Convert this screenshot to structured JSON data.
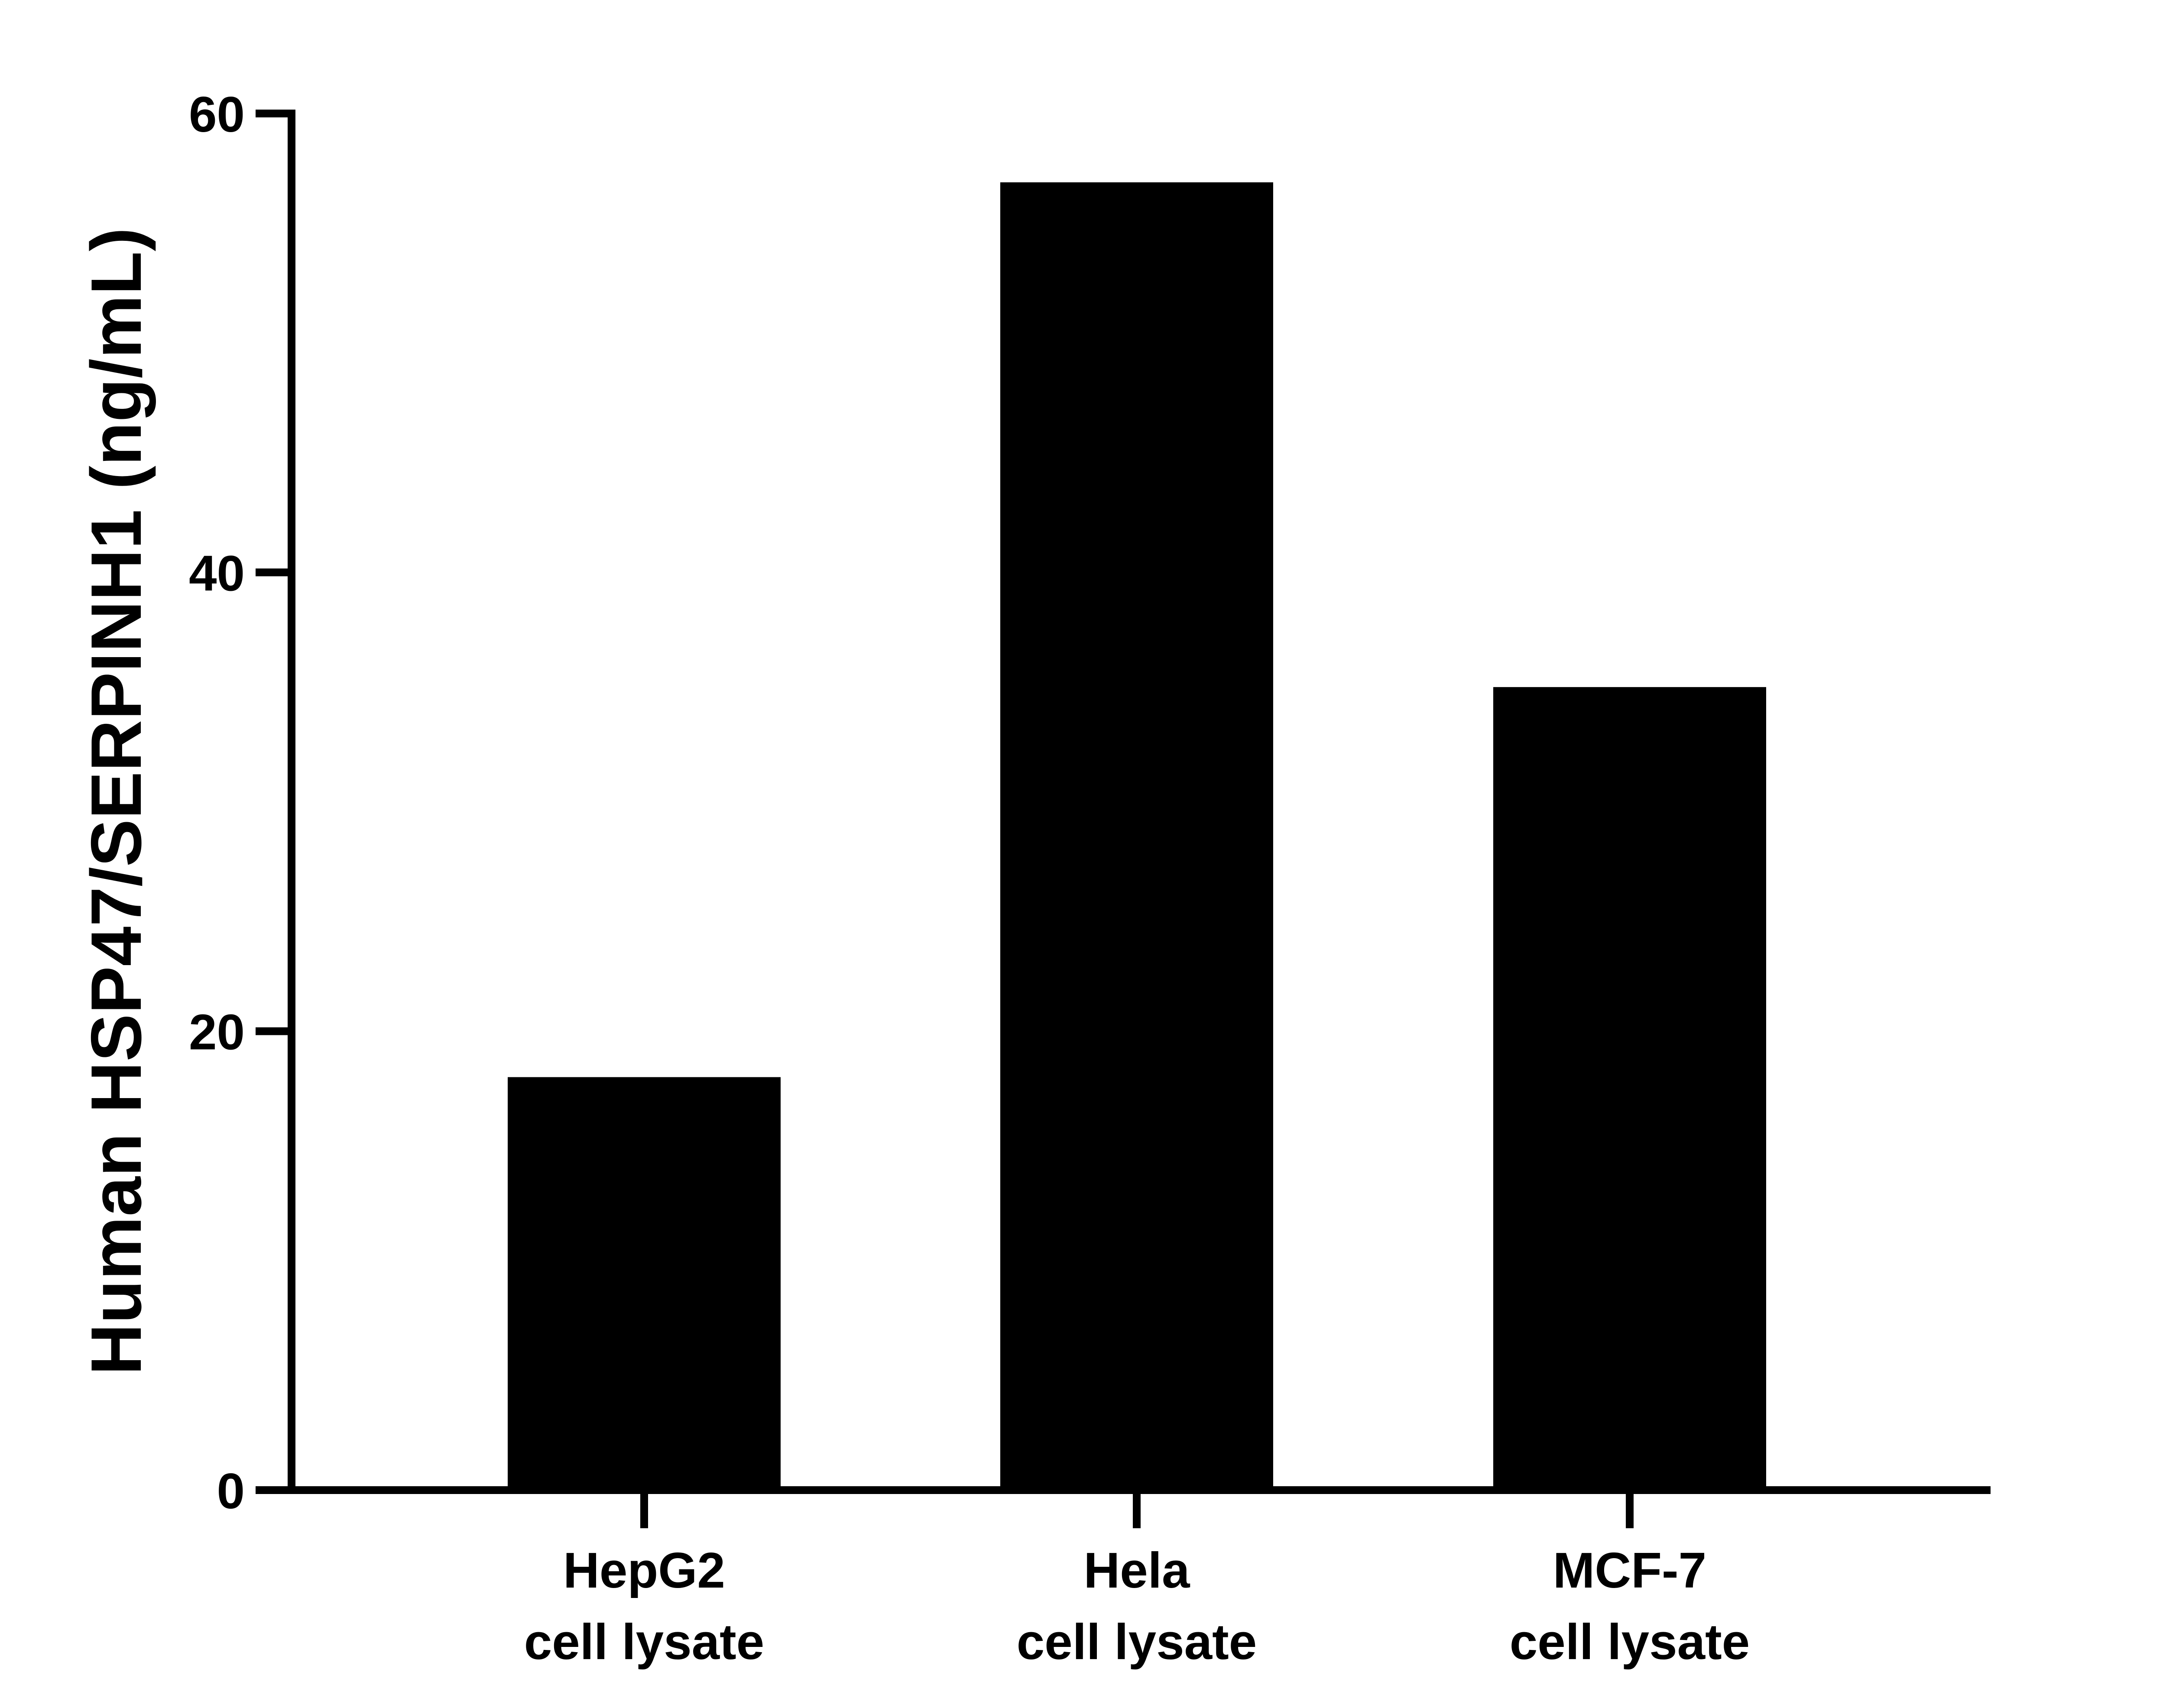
{
  "chart_data": {
    "type": "bar",
    "title": "",
    "xlabel": "",
    "ylabel": "Human HSP47/SERPINH1 (ng/mL)",
    "ylim": [
      0,
      60
    ],
    "yticks": [
      0,
      20,
      40,
      60
    ],
    "categories": [
      [
        "HepG2",
        "cell lysate"
      ],
      [
        "Hela",
        "cell lysate"
      ],
      [
        "MCF-7",
        "cell lysate"
      ]
    ],
    "values": [
      18,
      57,
      35
    ],
    "grid": false,
    "legend": "none",
    "bar_color": "#000000"
  }
}
